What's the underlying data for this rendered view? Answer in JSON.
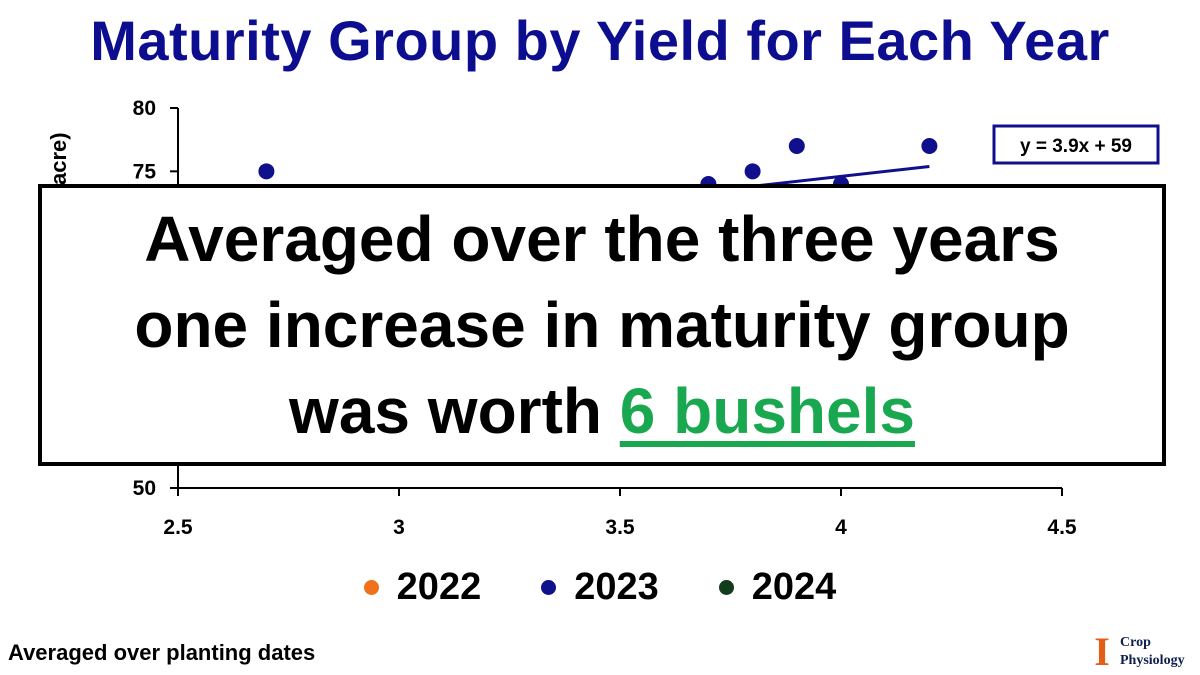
{
  "title": "Maturity Group by Yield for Each Year",
  "chart_data": {
    "type": "scatter",
    "title": "Maturity Group by Yield for Each Year",
    "xlabel": "",
    "ylabel": "acre)",
    "xlim": [
      2.5,
      4.5
    ],
    "ylim": [
      50,
      80
    ],
    "x_ticks": [
      "2.5",
      "3",
      "3.5",
      "4",
      "4.5"
    ],
    "y_ticks_visible": [
      "80",
      "75",
      "50"
    ],
    "series": [
      {
        "name": "2022",
        "color": "#f0711a",
        "points": []
      },
      {
        "name": "2023",
        "color": "#10108c",
        "points": [
          {
            "x": 2.7,
            "y": 75
          },
          {
            "x": 3.7,
            "y": 74
          },
          {
            "x": 3.8,
            "y": 75
          },
          {
            "x": 3.9,
            "y": 77
          },
          {
            "x": 4.0,
            "y": 74
          },
          {
            "x": 4.2,
            "y": 77
          }
        ]
      },
      {
        "name": "2024",
        "color": "#123d1c",
        "points": []
      }
    ],
    "trendline": {
      "series": "2023",
      "equation": "y = 3.9x + 59",
      "slope": 3.9,
      "intercept": 59,
      "x_range": [
        3.5,
        4.2
      ],
      "color": "#10108c"
    },
    "legend_position": "bottom",
    "grid": false
  },
  "overlay": {
    "line1": "Averaged over the three years",
    "line2": "one increase in maturity group",
    "line3_prefix": "was worth ",
    "highlight": "6 bushels",
    "highlight_color": "#19a84f"
  },
  "footnote": "Averaged over planting dates",
  "logo": {
    "mark": "I",
    "line1": "Crop",
    "line2": "Physiology",
    "mark_color": "#e35f18"
  }
}
